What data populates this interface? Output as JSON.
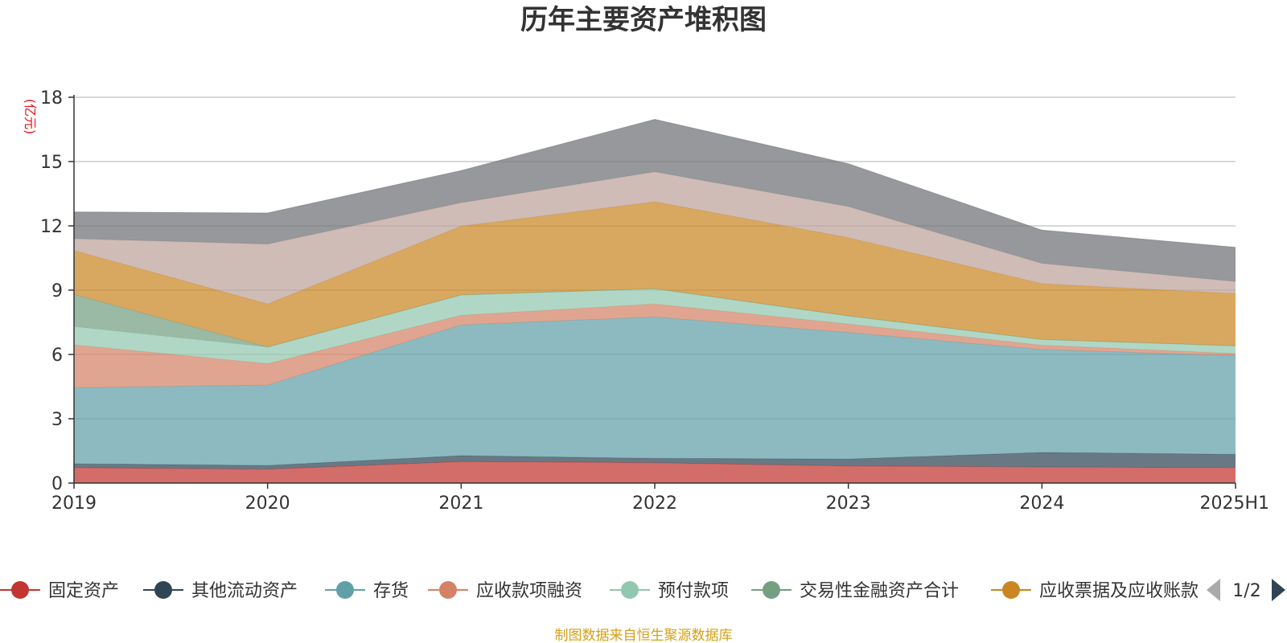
{
  "chart_data": {
    "type": "area",
    "stacked": true,
    "title": "历年主要资产堆积图",
    "unit_label": "(亿元)",
    "unit_color": "#e8141b",
    "x": [
      "2019",
      "2020",
      "2021",
      "2022",
      "2023",
      "2024",
      "2025H1"
    ],
    "ylim": [
      0,
      18
    ],
    "yticks": [
      0,
      3,
      6,
      9,
      12,
      15,
      18
    ],
    "grid": true,
    "legend_position": "bottom",
    "legend_page": "1/2",
    "series": [
      {
        "name": "固定资产",
        "color": "#c23531",
        "values": [
          0.72,
          0.65,
          1.0,
          0.95,
          0.8,
          0.75,
          0.72
        ]
      },
      {
        "name": "其他流动资产",
        "color": "#2f4554",
        "values": [
          0.18,
          0.17,
          0.28,
          0.2,
          0.32,
          0.68,
          0.62
        ]
      },
      {
        "name": "存货",
        "color": "#61a0a8",
        "values": [
          3.55,
          3.75,
          6.1,
          6.6,
          5.9,
          4.8,
          4.6
        ]
      },
      {
        "name": "应收款项融资",
        "color": "#d48265",
        "values": [
          2.0,
          1.0,
          0.45,
          0.6,
          0.4,
          0.2,
          0.1
        ]
      },
      {
        "name": "预付款项",
        "color": "#91c7ae",
        "values": [
          0.85,
          0.78,
          0.95,
          0.72,
          0.38,
          0.27,
          0.36
        ]
      },
      {
        "name": "交易性金融资产合计",
        "color": "#749f83",
        "values": [
          1.5,
          0.0,
          0.0,
          0.0,
          0.0,
          0.0,
          0.0
        ]
      },
      {
        "name": "应收票据及应收账款",
        "color": "#ca8622",
        "values": [
          2.05,
          2.0,
          3.2,
          4.05,
          3.65,
          2.6,
          2.44
        ]
      },
      {
        "name": "",
        "color": "#bda29a",
        "values": [
          0.55,
          2.8,
          1.1,
          1.4,
          1.45,
          0.95,
          0.56
        ]
      },
      {
        "name": "",
        "color": "#6e7074",
        "values": [
          1.25,
          1.45,
          1.5,
          2.45,
          2.0,
          1.55,
          1.6
        ]
      }
    ]
  },
  "footer": {
    "text": "制图数据来自恒生聚源数据库",
    "color": "#d4a017"
  }
}
